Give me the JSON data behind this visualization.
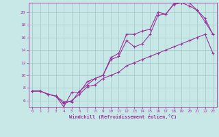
{
  "background_color": "#c8e8e8",
  "grid_color": "#a0c8c8",
  "line_color": "#993399",
  "marker": "+",
  "xlabel": "Windchill (Refroidissement éolien,°C)",
  "xlim": [
    -0.5,
    23.5
  ],
  "ylim": [
    5.0,
    21.5
  ],
  "yticks": [
    6,
    8,
    10,
    12,
    14,
    16,
    18,
    20
  ],
  "xticks": [
    0,
    1,
    2,
    3,
    4,
    5,
    6,
    7,
    8,
    9,
    10,
    11,
    12,
    13,
    14,
    15,
    16,
    17,
    18,
    19,
    20,
    21,
    22,
    23
  ],
  "series": [
    {
      "x": [
        0,
        1,
        2,
        3,
        4,
        5,
        6,
        7,
        8,
        9,
        10,
        11,
        12,
        13,
        14,
        15,
        16,
        17,
        18,
        19,
        20,
        21,
        22,
        23
      ],
      "y": [
        7.5,
        7.5,
        7.0,
        6.7,
        5.8,
        5.8,
        7.5,
        8.5,
        9.5,
        10.0,
        12.8,
        13.5,
        16.5,
        16.5,
        17.0,
        17.3,
        20.0,
        19.7,
        21.3,
        21.5,
        21.5,
        20.3,
        19.0,
        16.5
      ]
    },
    {
      "x": [
        0,
        1,
        2,
        3,
        4,
        5,
        6,
        7,
        8,
        9,
        10,
        11,
        12,
        13,
        14,
        15,
        16,
        17,
        18,
        19,
        20,
        21,
        22,
        23
      ],
      "y": [
        7.5,
        7.5,
        7.0,
        6.7,
        5.0,
        7.3,
        7.3,
        9.0,
        9.5,
        10.0,
        12.5,
        13.0,
        15.5,
        14.5,
        15.0,
        16.5,
        19.5,
        19.7,
        21.2,
        21.5,
        21.0,
        20.3,
        18.5,
        16.5
      ]
    },
    {
      "x": [
        0,
        1,
        2,
        3,
        4,
        5,
        6,
        7,
        8,
        9,
        10,
        11,
        12,
        13,
        14,
        15,
        16,
        17,
        18,
        19,
        20,
        21,
        22,
        23
      ],
      "y": [
        7.5,
        7.5,
        7.0,
        6.7,
        5.5,
        6.0,
        7.0,
        8.2,
        8.5,
        9.5,
        10.0,
        10.5,
        11.5,
        12.0,
        12.5,
        13.0,
        13.5,
        14.0,
        14.5,
        15.0,
        15.5,
        16.0,
        16.5,
        13.5
      ]
    }
  ]
}
